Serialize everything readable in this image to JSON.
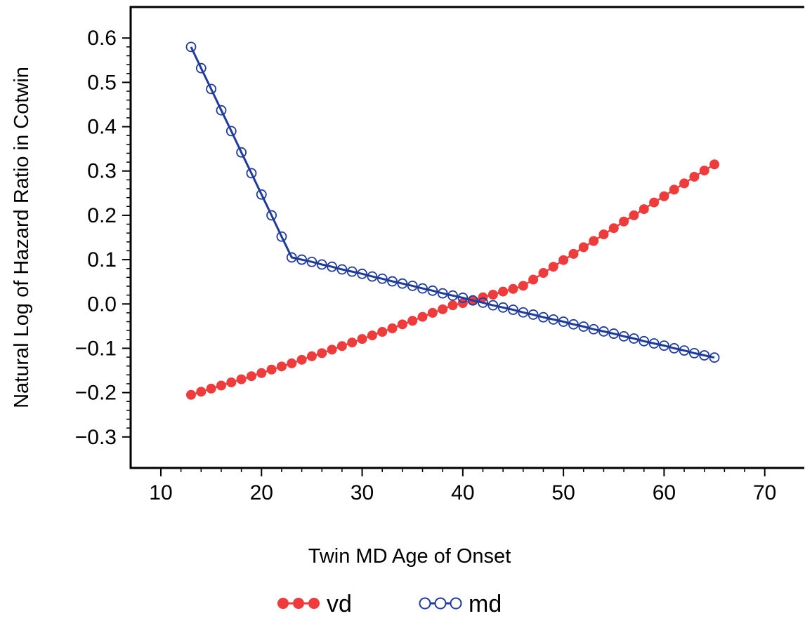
{
  "chart_data": {
    "type": "line",
    "xlabel": "Twin MD Age of Onset",
    "ylabel": "Natural Log of Hazard Ratio in Cotwin",
    "xlim": [
      7,
      74
    ],
    "ylim": [
      -0.37,
      0.67
    ],
    "x_ticks": [
      10,
      20,
      30,
      40,
      50,
      60,
      70
    ],
    "y_ticks": [
      -0.3,
      -0.2,
      -0.1,
      0.0,
      0.1,
      0.2,
      0.3,
      0.4,
      0.5,
      0.6
    ],
    "x_tick_labels": [
      "10",
      "20",
      "30",
      "40",
      "50",
      "60",
      "70"
    ],
    "y_tick_labels": [
      "−0.3",
      "−0.2",
      "−0.1",
      "0.0",
      "0.1",
      "0.2",
      "0.3",
      "0.4",
      "0.5",
      "0.6"
    ],
    "grid": false,
    "legend_position": "bottom",
    "series": [
      {
        "name": "vd",
        "color": "#ee3b3b",
        "marker": "filled-circle",
        "x": [
          13,
          14,
          15,
          16,
          17,
          18,
          19,
          20,
          21,
          22,
          23,
          24,
          25,
          26,
          27,
          28,
          29,
          30,
          31,
          32,
          33,
          34,
          35,
          36,
          37,
          38,
          39,
          40,
          41,
          42,
          43,
          44,
          45,
          46,
          47,
          48,
          49,
          50,
          51,
          52,
          53,
          54,
          55,
          56,
          57,
          58,
          59,
          60,
          61,
          62,
          63,
          64,
          65
        ],
        "y": [
          -0.205,
          -0.198,
          -0.191,
          -0.184,
          -0.177,
          -0.17,
          -0.163,
          -0.156,
          -0.148,
          -0.141,
          -0.134,
          -0.126,
          -0.118,
          -0.111,
          -0.103,
          -0.095,
          -0.087,
          -0.079,
          -0.071,
          -0.063,
          -0.055,
          -0.046,
          -0.038,
          -0.029,
          -0.02,
          -0.012,
          -0.003,
          0.002,
          0.008,
          0.015,
          0.021,
          0.028,
          0.034,
          0.041,
          0.055,
          0.07,
          0.084,
          0.099,
          0.113,
          0.128,
          0.142,
          0.157,
          0.171,
          0.186,
          0.2,
          0.214,
          0.229,
          0.243,
          0.258,
          0.272,
          0.287,
          0.301,
          0.315
        ]
      },
      {
        "name": "md",
        "color": "#1f3b9c",
        "marker": "open-circle",
        "x": [
          13,
          14,
          15,
          16,
          17,
          18,
          19,
          20,
          21,
          22,
          23,
          24,
          25,
          26,
          27,
          28,
          29,
          30,
          31,
          32,
          33,
          34,
          35,
          36,
          37,
          38,
          39,
          40,
          41,
          42,
          43,
          44,
          45,
          46,
          47,
          48,
          49,
          50,
          51,
          52,
          53,
          54,
          55,
          56,
          57,
          58,
          59,
          60,
          61,
          62,
          63,
          64,
          65
        ],
        "y": [
          0.58,
          0.532,
          0.485,
          0.437,
          0.39,
          0.342,
          0.295,
          0.247,
          0.2,
          0.152,
          0.105,
          0.1,
          0.095,
          0.089,
          0.084,
          0.078,
          0.073,
          0.068,
          0.062,
          0.057,
          0.051,
          0.046,
          0.041,
          0.035,
          0.03,
          0.024,
          0.019,
          0.014,
          0.008,
          0.003,
          -0.003,
          -0.008,
          -0.013,
          -0.019,
          -0.024,
          -0.03,
          -0.035,
          -0.04,
          -0.046,
          -0.051,
          -0.057,
          -0.062,
          -0.067,
          -0.073,
          -0.078,
          -0.084,
          -0.089,
          -0.094,
          -0.1,
          -0.105,
          -0.111,
          -0.116,
          -0.121
        ]
      }
    ]
  }
}
